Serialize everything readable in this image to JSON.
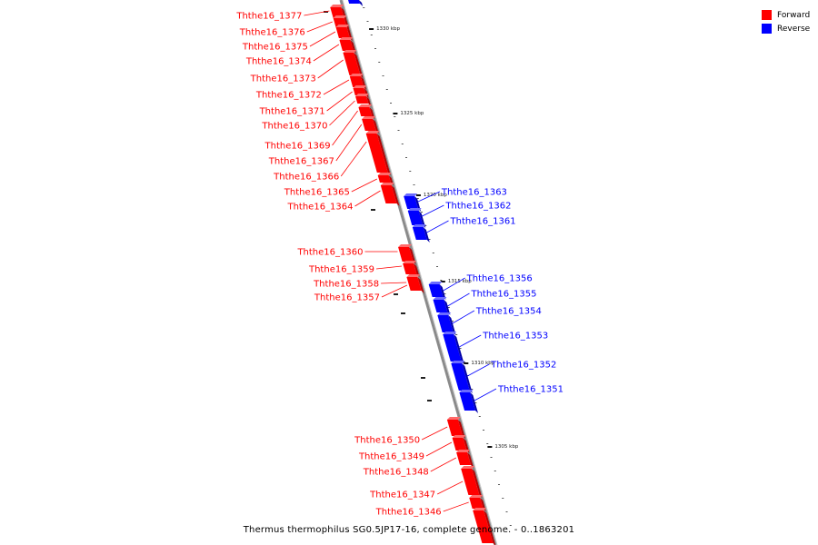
{
  "legend": [
    {
      "label": "Forward",
      "color": "#ff0000"
    },
    {
      "label": "Reverse",
      "color": "#0000ff"
    }
  ],
  "caption": "Thermus thermophilus SG0.5JP17-16, complete genome. - 0..1863201",
  "colors": {
    "forward": "#ff0000",
    "reverse": "#0000ff",
    "backbone": "#8c8c8c"
  },
  "ticks": [
    "1330 kbp",
    "1325 kbp",
    "1320 kbp",
    "1315 kbp",
    "1310 kbp",
    "1305 kbp"
  ],
  "genes_forward": [
    "Ththe16_1377",
    "Ththe16_1376",
    "Ththe16_1375",
    "Ththe16_1374",
    "Ththe16_1373",
    "Ththe16_1372",
    "Ththe16_1371",
    "Ththe16_1370",
    "Ththe16_1369",
    "Ththe16_1367",
    "Ththe16_1366",
    "Ththe16_1365",
    "Ththe16_1364",
    "Ththe16_1360",
    "Ththe16_1359",
    "Ththe16_1358",
    "Ththe16_1357",
    "Ththe16_1350",
    "Ththe16_1349",
    "Ththe16_1348",
    "Ththe16_1347",
    "Ththe16_1346"
  ],
  "genes_reverse": [
    "Ththe16_1363",
    "Ththe16_1362",
    "Ththe16_1361",
    "Ththe16_1356",
    "Ththe16_1355",
    "Ththe16_1354",
    "Ththe16_1353",
    "Ththe16_1352",
    "Ththe16_1351"
  ]
}
